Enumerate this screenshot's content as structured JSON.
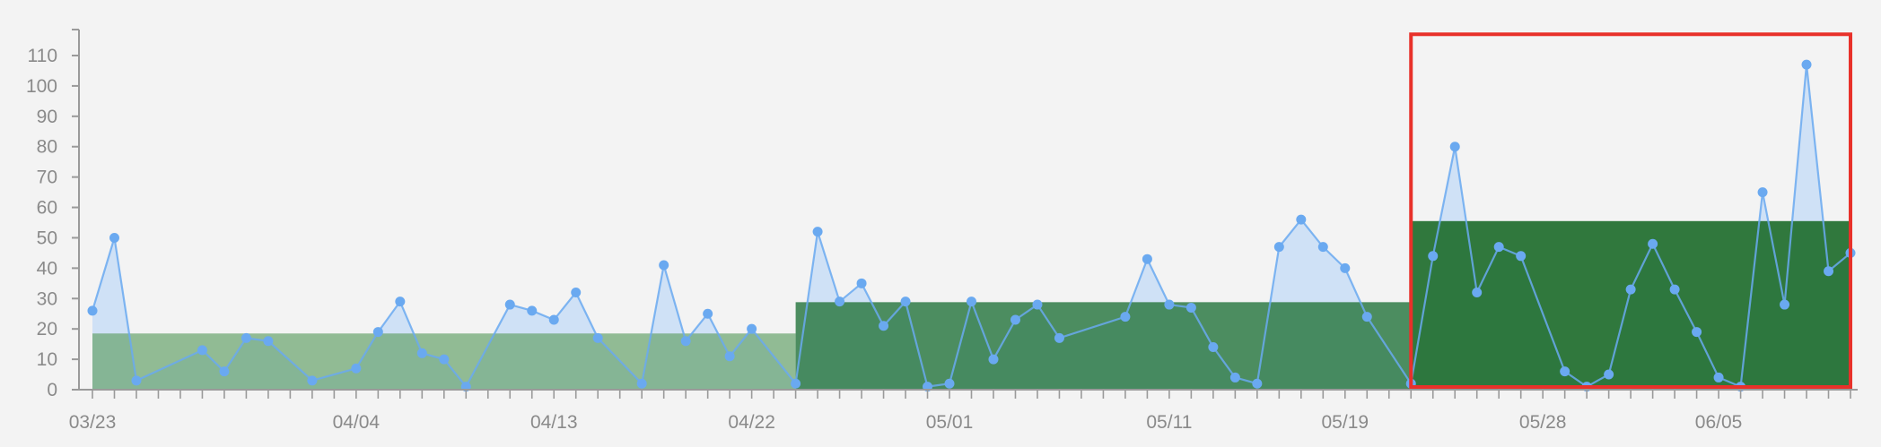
{
  "chart_data": {
    "type": "area",
    "title": "",
    "xlabel": "",
    "ylabel": "",
    "ylim": [
      0,
      110
    ],
    "yticks": [
      0,
      10,
      20,
      30,
      40,
      50,
      60,
      70,
      80,
      90,
      100,
      110
    ],
    "x_tick_labels": [
      {
        "label": "03/23",
        "date": "2020-03-23"
      },
      {
        "label": "04/04",
        "date": "2020-04-04"
      },
      {
        "label": "04/13",
        "date": "2020-04-13"
      },
      {
        "label": "04/22",
        "date": "2020-04-22"
      },
      {
        "label": "05/01",
        "date": "2020-05-01"
      },
      {
        "label": "05/11",
        "date": "2020-05-11"
      },
      {
        "label": "05/19",
        "date": "2020-05-19"
      },
      {
        "label": "05/28",
        "date": "2020-05-28"
      },
      {
        "label": "06/05",
        "date": "2020-06-05"
      }
    ],
    "xlim": [
      "2020-03-23",
      "2020-06-10"
    ],
    "series": [
      {
        "color": "#6aa9f0",
        "fill": "#cfe1f6",
        "points": [
          [
            "2020-03-23",
            26
          ],
          [
            "2020-03-24",
            50
          ],
          [
            "2020-03-25",
            3
          ],
          [
            "2020-03-28",
            13
          ],
          [
            "2020-03-29",
            6
          ],
          [
            "2020-03-30",
            17
          ],
          [
            "2020-03-31",
            16
          ],
          [
            "2020-04-02",
            3
          ],
          [
            "2020-04-04",
            7
          ],
          [
            "2020-04-05",
            19
          ],
          [
            "2020-04-06",
            29
          ],
          [
            "2020-04-07",
            12
          ],
          [
            "2020-04-08",
            10
          ],
          [
            "2020-04-09",
            1
          ],
          [
            "2020-04-11",
            28
          ],
          [
            "2020-04-12",
            26
          ],
          [
            "2020-04-13",
            23
          ],
          [
            "2020-04-14",
            32
          ],
          [
            "2020-04-15",
            17
          ],
          [
            "2020-04-17",
            2
          ],
          [
            "2020-04-18",
            41
          ],
          [
            "2020-04-19",
            16
          ],
          [
            "2020-04-20",
            25
          ],
          [
            "2020-04-21",
            11
          ],
          [
            "2020-04-22",
            20
          ],
          [
            "2020-04-24",
            2
          ],
          [
            "2020-04-25",
            52
          ],
          [
            "2020-04-26",
            29
          ],
          [
            "2020-04-27",
            35
          ],
          [
            "2020-04-28",
            21
          ],
          [
            "2020-04-29",
            29
          ],
          [
            "2020-04-30",
            1
          ],
          [
            "2020-05-01",
            2
          ],
          [
            "2020-05-02",
            29
          ],
          [
            "2020-05-03",
            10
          ],
          [
            "2020-05-04",
            23
          ],
          [
            "2020-05-05",
            28
          ],
          [
            "2020-05-06",
            17
          ],
          [
            "2020-05-09",
            24
          ],
          [
            "2020-05-10",
            43
          ],
          [
            "2020-05-11",
            28
          ],
          [
            "2020-05-12",
            27
          ],
          [
            "2020-05-13",
            14
          ],
          [
            "2020-05-14",
            4
          ],
          [
            "2020-05-15",
            2
          ],
          [
            "2020-05-16",
            47
          ],
          [
            "2020-05-17",
            56
          ],
          [
            "2020-05-18",
            47
          ],
          [
            "2020-05-19",
            40
          ],
          [
            "2020-05-20",
            24
          ],
          [
            "2020-05-22",
            2
          ],
          [
            "2020-05-23",
            44
          ],
          [
            "2020-05-24",
            80
          ],
          [
            "2020-05-25",
            32
          ],
          [
            "2020-05-26",
            47
          ],
          [
            "2020-05-27",
            44
          ],
          [
            "2020-05-29",
            6
          ],
          [
            "2020-05-30",
            1
          ],
          [
            "2020-05-31",
            5
          ],
          [
            "2020-06-01",
            33
          ],
          [
            "2020-06-02",
            48
          ],
          [
            "2020-06-03",
            33
          ],
          [
            "2020-06-04",
            19
          ],
          [
            "2020-06-05",
            4
          ],
          [
            "2020-06-06",
            1
          ],
          [
            "2020-06-07",
            65
          ],
          [
            "2020-06-08",
            28
          ],
          [
            "2020-06-09",
            107
          ],
          [
            "2020-06-10",
            39
          ],
          [
            "2020-06-11",
            45
          ]
        ]
      }
    ],
    "average_bands": [
      {
        "start": "2020-03-23",
        "end": "2020-04-24",
        "value": 18.5,
        "color": "#5e9e62",
        "opacity": 0.66
      },
      {
        "start": "2020-04-24",
        "end": "2020-05-22",
        "value": 28.8,
        "color": "#2e7a45",
        "opacity": 0.85
      },
      {
        "start": "2020-05-22",
        "end": "2020-06-11",
        "value": 55.5,
        "color": "#1f6e2e",
        "opacity": 0.92
      }
    ],
    "highlight": {
      "start": "2020-05-22",
      "end": "2020-06-11",
      "y_top": 117,
      "color": "#e8312a"
    },
    "grid": false,
    "legend": "none"
  }
}
